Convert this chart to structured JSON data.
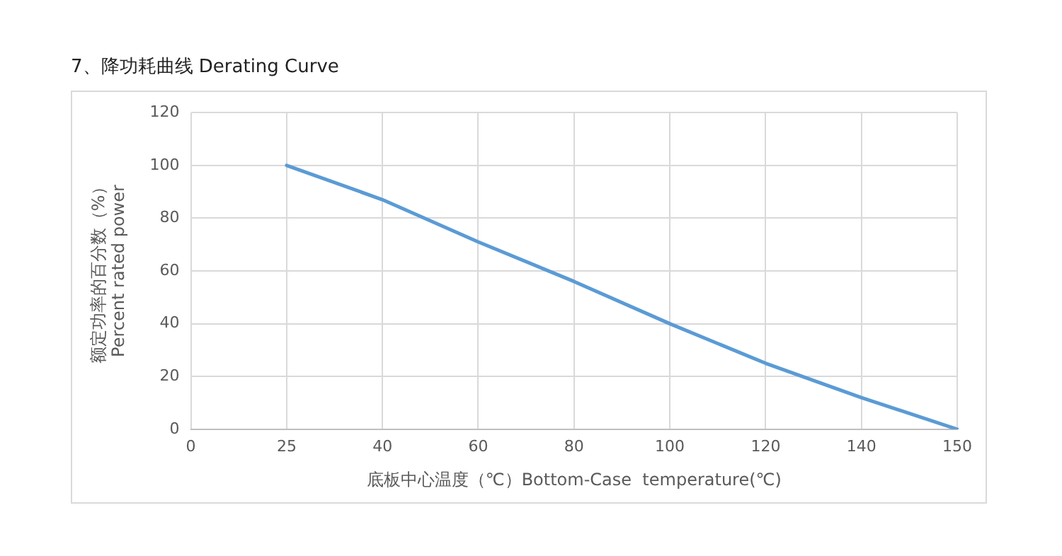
{
  "chart_data": {
    "type": "line",
    "title": "7、降功耗曲线 Derating Curve",
    "xlabel": "底板中心温度（℃）Bottom-Case  temperature(℃)",
    "ylabel": "额定功率的百分数（%）\nPercent rated power",
    "categories": [
      "0",
      "25",
      "40",
      "60",
      "80",
      "100",
      "120",
      "140",
      "150"
    ],
    "series": [
      {
        "color": "#5b9bd5",
        "values": [
          null,
          100,
          87,
          71,
          56,
          40,
          25,
          12,
          0
        ]
      }
    ],
    "ylim": [
      0,
      120
    ],
    "yticks": [
      0,
      20,
      40,
      60,
      80,
      100,
      120
    ],
    "grid": true,
    "legend": false,
    "marker": "none",
    "line_style": "solid"
  }
}
